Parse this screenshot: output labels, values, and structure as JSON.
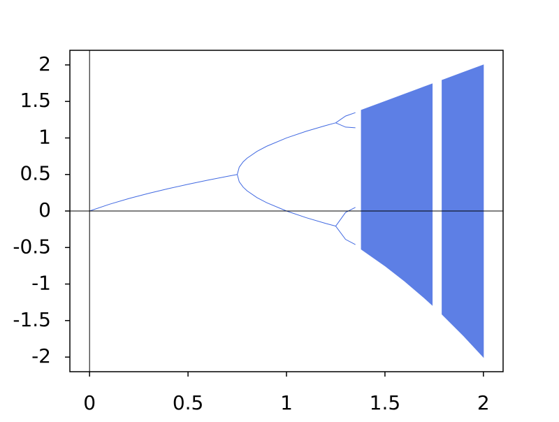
{
  "chart_data": {
    "type": "bifurcation",
    "color": "#4169e1",
    "xlim": [
      -0.1,
      2.1
    ],
    "ylim": [
      -2.2,
      2.2
    ],
    "xticks": [
      0,
      0.5,
      1,
      1.5,
      2
    ],
    "yticks": [
      -2,
      -1.5,
      -1,
      -0.5,
      0,
      0.5,
      1,
      1.5,
      2
    ],
    "zero_lines": true,
    "lines": [
      {
        "x": [
          0,
          0.1,
          0.2,
          0.3,
          0.4,
          0.5,
          0.6,
          0.7,
          0.75
        ],
        "values": [
          0,
          0.0916,
          0.1708,
          0.2416,
          0.3062,
          0.366,
          0.422,
          0.4747,
          0.5
        ]
      },
      {
        "x": [
          0.75,
          0.76,
          0.78,
          0.8,
          0.85,
          0.9,
          1.0,
          1.1,
          1.2,
          1.25
        ],
        "values": [
          0.5,
          0.6,
          0.6732,
          0.7236,
          0.8162,
          0.8873,
          1,
          1.0916,
          1.1708,
          1.2071
        ]
      },
      {
        "x": [
          0.75,
          0.76,
          0.78,
          0.8,
          0.85,
          0.9,
          1.0,
          1.1,
          1.2,
          1.25
        ],
        "values": [
          0.5,
          0.4,
          0.3268,
          0.2764,
          0.1838,
          0.1127,
          0,
          -0.0916,
          -0.1708,
          -0.2071
        ]
      },
      {
        "x": [
          1.25,
          1.3,
          1.35
        ],
        "values": [
          1.2071,
          1.2996,
          1.347
        ]
      },
      {
        "x": [
          1.25,
          1.3,
          1.35
        ],
        "values": [
          1.2071,
          1.1487,
          1.14
        ]
      },
      {
        "x": [
          1.25,
          1.3,
          1.35
        ],
        "values": [
          -0.2071,
          -0.0195,
          0.05
        ]
      },
      {
        "x": [
          1.25,
          1.3,
          1.35
        ],
        "values": [
          -0.2071,
          -0.389,
          -0.46
        ]
      }
    ],
    "band": {
      "x": [
        1.38,
        1.5,
        1.6,
        1.7,
        1.74,
        1.76,
        1.79,
        1.9,
        2.0
      ],
      "upper": [
        1.38,
        1.5,
        1.6,
        1.7,
        1.74,
        null,
        1.79,
        1.9,
        2.0
      ],
      "lower": [
        -0.524,
        -0.75,
        -0.96,
        -1.19,
        -1.2876,
        null,
        -1.4141,
        -1.71,
        -2.0
      ]
    }
  }
}
